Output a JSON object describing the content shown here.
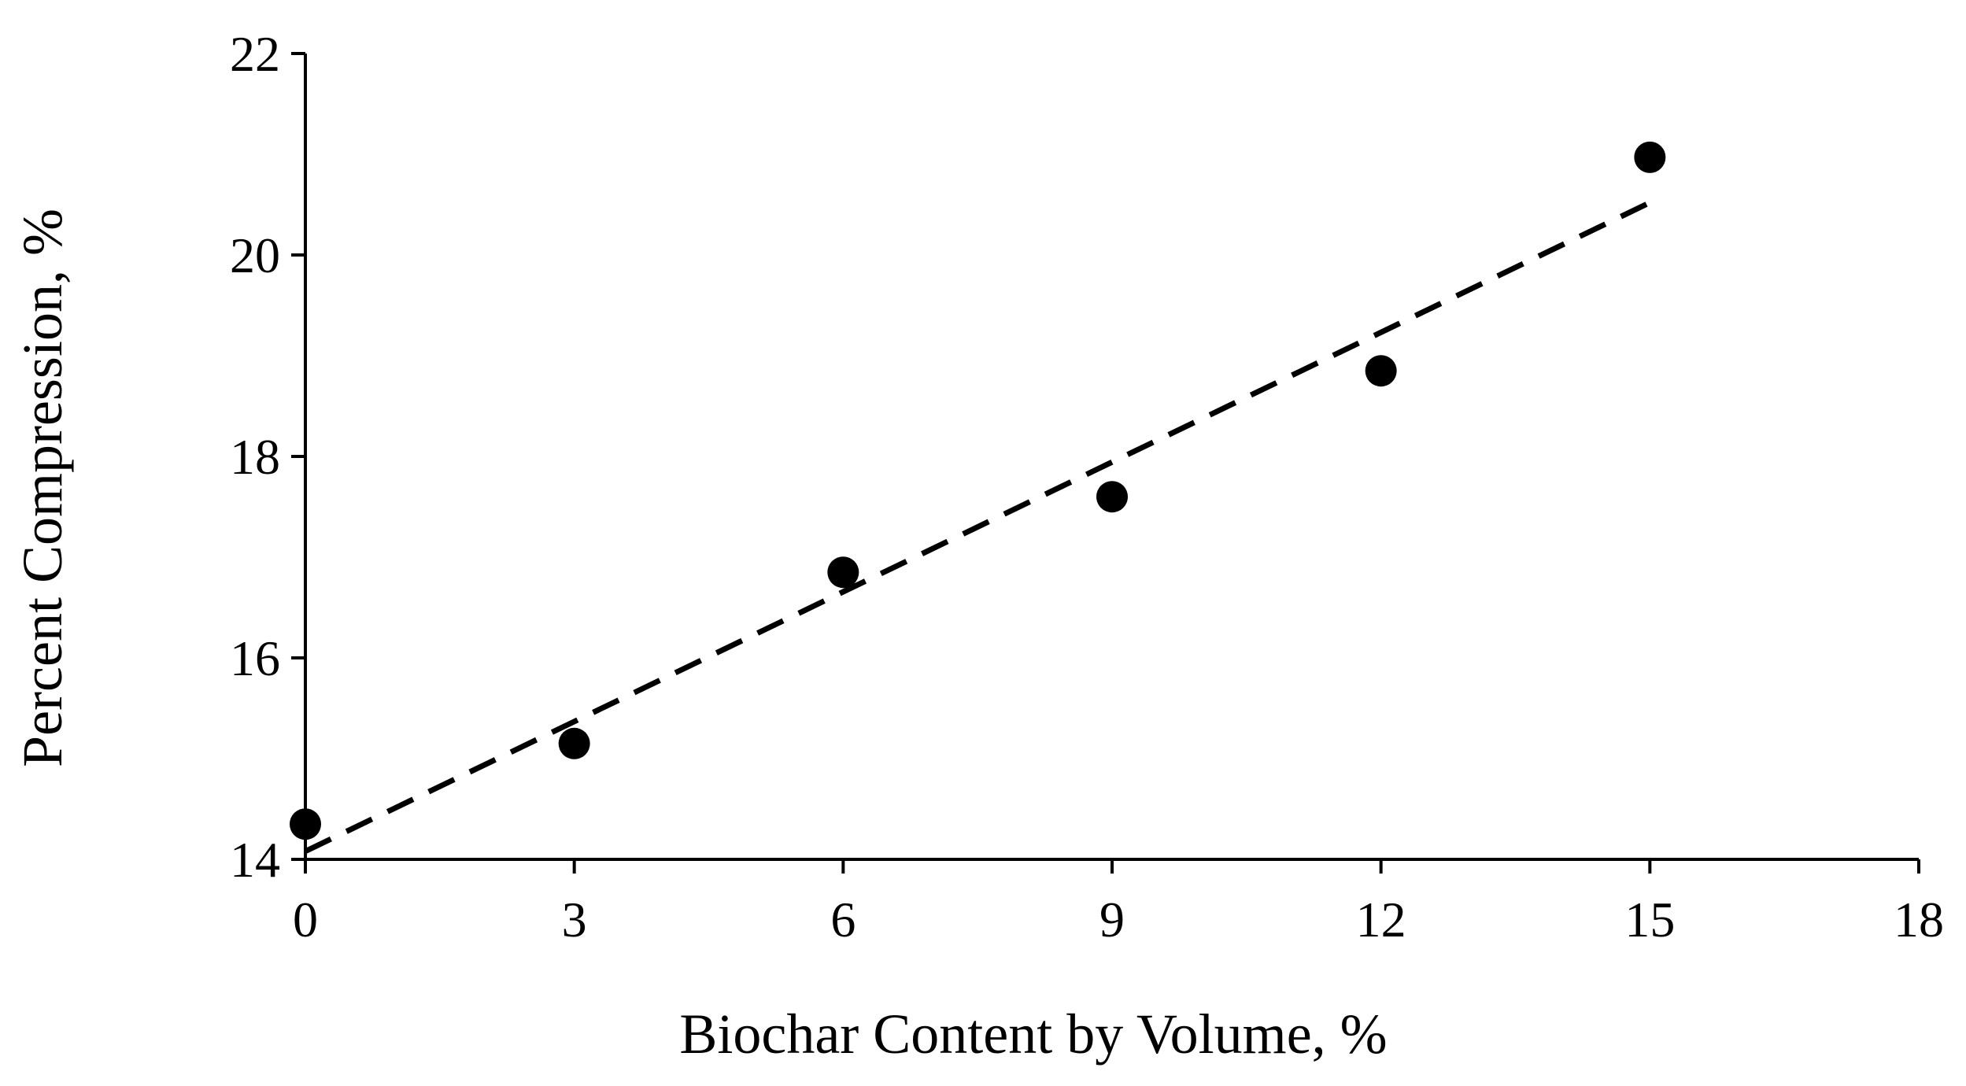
{
  "chart_data": {
    "type": "scatter",
    "title": "",
    "xlabel": "Biochar Content by Volume, %",
    "ylabel": "Percent Compression, %",
    "xlim": [
      0,
      18
    ],
    "ylim": [
      14,
      22
    ],
    "xticks": [
      "0",
      "3",
      "6",
      "9",
      "12",
      "15",
      "18"
    ],
    "yticks": [
      "14",
      "16",
      "18",
      "20",
      "22"
    ],
    "grid": false,
    "legend": "none",
    "series": [
      {
        "marker": "filled-circle",
        "color": "#000000",
        "x": [
          0,
          3,
          6,
          9,
          12,
          15
        ],
        "y": [
          14.35,
          15.15,
          16.85,
          17.6,
          18.85,
          20.97
        ]
      }
    ],
    "trendline": {
      "style": "dashed",
      "color": "#000000",
      "x": [
        0,
        15
      ],
      "y": [
        14.08,
        20.52
      ]
    }
  }
}
